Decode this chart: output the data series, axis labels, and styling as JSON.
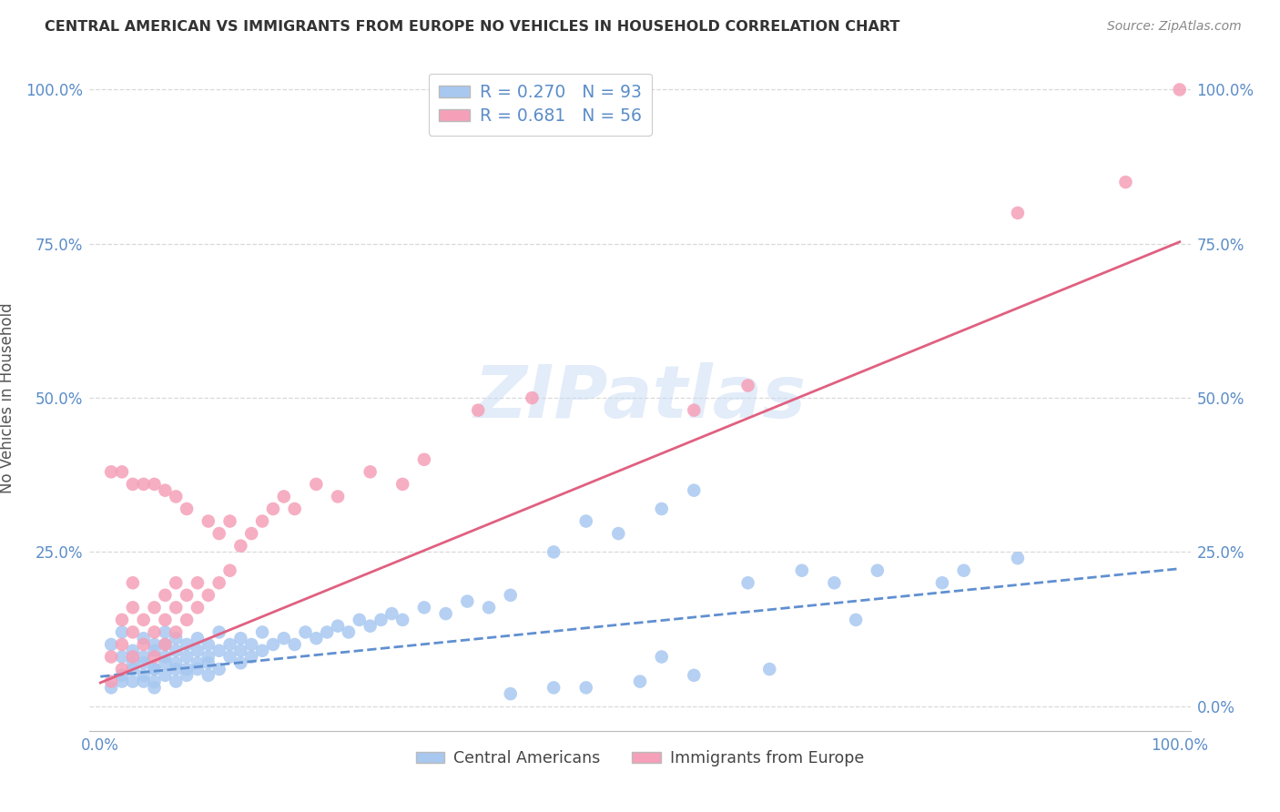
{
  "title": "CENTRAL AMERICAN VS IMMIGRANTS FROM EUROPE NO VEHICLES IN HOUSEHOLD CORRELATION CHART",
  "source": "Source: ZipAtlas.com",
  "ylabel": "No Vehicles in Household",
  "watermark": "ZIPatlas",
  "legend_labels": [
    "Central Americans",
    "Immigrants from Europe"
  ],
  "series": [
    {
      "name": "Central Americans",
      "R": 0.27,
      "N": 93,
      "color": "#a8c8f0",
      "line_color": "#6090d0",
      "line_style": "dashed",
      "intercept": 0.048,
      "slope": 0.175
    },
    {
      "name": "Immigrants from Europe",
      "R": 0.681,
      "N": 56,
      "color": "#f5a0b8",
      "line_color": "#e06080",
      "line_style": "solid",
      "intercept": 0.038,
      "slope": 0.715
    }
  ],
  "blue_scatter_x": [
    0.01,
    0.01,
    0.02,
    0.02,
    0.02,
    0.02,
    0.03,
    0.03,
    0.03,
    0.03,
    0.04,
    0.04,
    0.04,
    0.04,
    0.04,
    0.05,
    0.05,
    0.05,
    0.05,
    0.05,
    0.05,
    0.06,
    0.06,
    0.06,
    0.06,
    0.06,
    0.07,
    0.07,
    0.07,
    0.07,
    0.07,
    0.08,
    0.08,
    0.08,
    0.08,
    0.09,
    0.09,
    0.09,
    0.09,
    0.1,
    0.1,
    0.1,
    0.1,
    0.11,
    0.11,
    0.11,
    0.12,
    0.12,
    0.13,
    0.13,
    0.13,
    0.14,
    0.14,
    0.15,
    0.15,
    0.16,
    0.17,
    0.18,
    0.19,
    0.2,
    0.21,
    0.22,
    0.23,
    0.24,
    0.25,
    0.26,
    0.27,
    0.28,
    0.3,
    0.32,
    0.34,
    0.36,
    0.38,
    0.42,
    0.45,
    0.48,
    0.52,
    0.55,
    0.6,
    0.65,
    0.68,
    0.72,
    0.78,
    0.8,
    0.85,
    0.42,
    0.5,
    0.55,
    0.62,
    0.7,
    0.38,
    0.45,
    0.52
  ],
  "blue_scatter_y": [
    0.1,
    0.03,
    0.08,
    0.05,
    0.12,
    0.04,
    0.06,
    0.09,
    0.04,
    0.07,
    0.05,
    0.08,
    0.11,
    0.04,
    0.07,
    0.06,
    0.09,
    0.04,
    0.1,
    0.06,
    0.03,
    0.07,
    0.1,
    0.05,
    0.08,
    0.12,
    0.06,
    0.09,
    0.04,
    0.11,
    0.07,
    0.08,
    0.05,
    0.1,
    0.06,
    0.09,
    0.06,
    0.11,
    0.07,
    0.08,
    0.05,
    0.1,
    0.07,
    0.09,
    0.06,
    0.12,
    0.08,
    0.1,
    0.07,
    0.09,
    0.11,
    0.08,
    0.1,
    0.09,
    0.12,
    0.1,
    0.11,
    0.1,
    0.12,
    0.11,
    0.12,
    0.13,
    0.12,
    0.14,
    0.13,
    0.14,
    0.15,
    0.14,
    0.16,
    0.15,
    0.17,
    0.16,
    0.18,
    0.25,
    0.3,
    0.28,
    0.32,
    0.35,
    0.2,
    0.22,
    0.2,
    0.22,
    0.2,
    0.22,
    0.24,
    0.03,
    0.04,
    0.05,
    0.06,
    0.14,
    0.02,
    0.03,
    0.08
  ],
  "pink_scatter_x": [
    0.01,
    0.01,
    0.01,
    0.02,
    0.02,
    0.02,
    0.02,
    0.03,
    0.03,
    0.03,
    0.03,
    0.03,
    0.04,
    0.04,
    0.04,
    0.05,
    0.05,
    0.05,
    0.05,
    0.06,
    0.06,
    0.06,
    0.06,
    0.07,
    0.07,
    0.07,
    0.07,
    0.08,
    0.08,
    0.08,
    0.09,
    0.09,
    0.1,
    0.1,
    0.11,
    0.11,
    0.12,
    0.12,
    0.13,
    0.14,
    0.15,
    0.16,
    0.17,
    0.18,
    0.2,
    0.22,
    0.25,
    0.28,
    0.3,
    0.35,
    0.4,
    0.55,
    0.6,
    0.85,
    0.95,
    1.0
  ],
  "pink_scatter_y": [
    0.04,
    0.08,
    0.38,
    0.06,
    0.1,
    0.14,
    0.38,
    0.08,
    0.12,
    0.16,
    0.2,
    0.36,
    0.1,
    0.14,
    0.36,
    0.08,
    0.12,
    0.16,
    0.36,
    0.1,
    0.14,
    0.18,
    0.35,
    0.12,
    0.16,
    0.2,
    0.34,
    0.14,
    0.18,
    0.32,
    0.16,
    0.2,
    0.18,
    0.3,
    0.2,
    0.28,
    0.22,
    0.3,
    0.26,
    0.28,
    0.3,
    0.32,
    0.34,
    0.32,
    0.36,
    0.34,
    0.38,
    0.36,
    0.4,
    0.48,
    0.5,
    0.48,
    0.52,
    0.8,
    0.85,
    1.0
  ],
  "background_color": "#ffffff",
  "grid_color": "#d0d0d0",
  "title_color": "#333333",
  "tick_label_color": "#5b8dc8",
  "legend_text_color": "#5b8dc8"
}
